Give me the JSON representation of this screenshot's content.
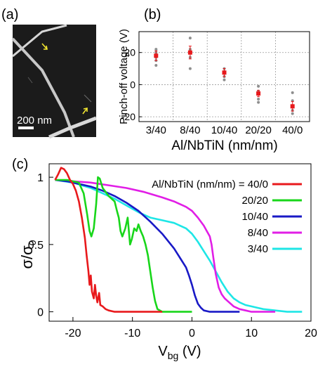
{
  "panel_labels": {
    "a": "(a)",
    "b": "(b)",
    "c": "(c)"
  },
  "micrograph": {
    "scale_bar_label": "200 nm",
    "arrow_color": "#f2e630"
  },
  "colors": {
    "40/0": "#e8191c",
    "20/20": "#18d61a",
    "10/40": "#1919c6",
    "8/40": "#e11ee6",
    "3/40": "#1ee6e6",
    "pinchoff_mean": "#e8191c",
    "pinchoff_sample": "#8e8e8e"
  },
  "chart_data": [
    {
      "type": "scatter",
      "panel": "(b)",
      "ylabel": "Pinch-off voltage (V)",
      "xlabel": "Al/NbTiN (nm/nm)",
      "categories": [
        "3/40",
        "8/40",
        "10/40",
        "20/20",
        "40/0"
      ],
      "ylim": [
        -23,
        33
      ],
      "yticks": [
        20,
        0,
        -20
      ],
      "grid": true,
      "mean": [
        18,
        20,
        7.5,
        -5.5,
        -13.5
      ],
      "mean_error": [
        3,
        4,
        2.5,
        2,
        3
      ],
      "samples": [
        [
          12,
          15,
          17,
          20,
          22
        ],
        [
          10,
          17,
          20,
          22,
          29
        ],
        [
          3,
          5,
          8,
          10
        ],
        [
          -1,
          -4,
          -6,
          -9,
          -11
        ],
        [
          -5,
          -10,
          -13,
          -16,
          -18
        ]
      ]
    },
    {
      "type": "line",
      "panel": "(c)",
      "xlabel": "V",
      "xlabel_sub": "bg",
      "xlabel_unit": " (V)",
      "ylabel": "σ/σ",
      "ylabel_sub": "0",
      "xlim": [
        -24,
        20
      ],
      "ylim": [
        -0.07,
        1.1
      ],
      "xticks": [
        -20,
        -10,
        0,
        10,
        20
      ],
      "yticks": [
        0,
        0.5,
        1
      ],
      "legend_title": "Al/NbTiN (nm/nm) = 40/0",
      "legend_position": "top-right",
      "series": [
        {
          "name": "40/0",
          "points": [
            [
              -23,
              0.98
            ],
            [
              -22.5,
              1.02
            ],
            [
              -22,
              1.07
            ],
            [
              -21.5,
              1.06
            ],
            [
              -21,
              1.03
            ],
            [
              -20.5,
              0.98
            ],
            [
              -20,
              0.95
            ],
            [
              -19.5,
              0.9
            ],
            [
              -19,
              0.82
            ],
            [
              -18.5,
              0.7
            ],
            [
              -18,
              0.55
            ],
            [
              -17.7,
              0.42
            ],
            [
              -17.4,
              0.3
            ],
            [
              -17.2,
              0.2
            ],
            [
              -17.0,
              0.27
            ],
            [
              -16.8,
              0.15
            ],
            [
              -16.5,
              0.1
            ],
            [
              -16.3,
              0.2
            ],
            [
              -16.1,
              0.12
            ],
            [
              -15.9,
              0.07
            ],
            [
              -15.6,
              0.14
            ],
            [
              -15.4,
              0.05
            ],
            [
              -15,
              0.04
            ],
            [
              -14.5,
              0.02
            ],
            [
              -14,
              0.01
            ],
            [
              -13,
              0
            ],
            [
              -10,
              0
            ],
            [
              -5,
              0
            ]
          ]
        },
        {
          "name": "20/20",
          "points": [
            [
              -23,
              0.98
            ],
            [
              -21,
              0.98
            ],
            [
              -19,
              0.96
            ],
            [
              -18.2,
              0.88
            ],
            [
              -17.6,
              0.72
            ],
            [
              -17.2,
              0.6
            ],
            [
              -16.9,
              0.56
            ],
            [
              -16.5,
              0.62
            ],
            [
              -16.1,
              0.8
            ],
            [
              -15.8,
              1.0
            ],
            [
              -15.5,
              0.99
            ],
            [
              -15,
              0.92
            ],
            [
              -14,
              0.86
            ],
            [
              -13,
              0.82
            ],
            [
              -12.6,
              0.75
            ],
            [
              -12.3,
              0.7
            ],
            [
              -12.0,
              0.6
            ],
            [
              -11.7,
              0.56
            ],
            [
              -11.2,
              0.62
            ],
            [
              -10.8,
              0.7
            ],
            [
              -10.4,
              0.5
            ],
            [
              -10.1,
              0.54
            ],
            [
              -9.7,
              0.62
            ],
            [
              -9.3,
              0.6
            ],
            [
              -9.0,
              0.65
            ],
            [
              -8.6,
              0.6
            ],
            [
              -8.2,
              0.56
            ],
            [
              -7.8,
              0.5
            ],
            [
              -7.4,
              0.42
            ],
            [
              -7,
              0.3
            ],
            [
              -6.6,
              0.18
            ],
            [
              -6.2,
              0.08
            ],
            [
              -5.8,
              0.02
            ],
            [
              -5,
              0
            ],
            [
              -2,
              0
            ],
            [
              0,
              0
            ]
          ]
        },
        {
          "name": "10/40",
          "points": [
            [
              -23,
              0.98
            ],
            [
              -21,
              0.97
            ],
            [
              -19,
              0.95
            ],
            [
              -17,
              0.93
            ],
            [
              -15,
              0.9
            ],
            [
              -13,
              0.86
            ],
            [
              -11,
              0.81
            ],
            [
              -9,
              0.75
            ],
            [
              -7,
              0.67
            ],
            [
              -5,
              0.58
            ],
            [
              -3,
              0.47
            ],
            [
              -2,
              0.4
            ],
            [
              -1,
              0.33
            ],
            [
              -0.5,
              0.27
            ],
            [
              0,
              0.2
            ],
            [
              0.5,
              0.12
            ],
            [
              1,
              0.06
            ],
            [
              1.5,
              0.03
            ],
            [
              2,
              0.01
            ],
            [
              3,
              0
            ],
            [
              5,
              0
            ],
            [
              8,
              0
            ]
          ]
        },
        {
          "name": "8/40",
          "points": [
            [
              -23,
              0.98
            ],
            [
              -20,
              0.97
            ],
            [
              -17,
              0.96
            ],
            [
              -14,
              0.94
            ],
            [
              -11,
              0.92
            ],
            [
              -8,
              0.89
            ],
            [
              -5,
              0.85
            ],
            [
              -3,
              0.82
            ],
            [
              -1,
              0.78
            ],
            [
              0,
              0.75
            ],
            [
              1,
              0.7
            ],
            [
              2,
              0.64
            ],
            [
              2.5,
              0.6
            ],
            [
              3,
              0.56
            ],
            [
              3.3,
              0.5
            ],
            [
              3.6,
              0.4
            ],
            [
              4.0,
              0.28
            ],
            [
              4.5,
              0.18
            ],
            [
              5,
              0.13
            ],
            [
              5.5,
              0.1
            ],
            [
              6,
              0.08
            ],
            [
              6.5,
              0.06
            ],
            [
              7,
              0.04
            ],
            [
              8,
              0.02
            ],
            [
              9,
              0.01
            ],
            [
              10,
              0
            ],
            [
              14,
              0
            ]
          ]
        },
        {
          "name": "3/40",
          "points": [
            [
              -23,
              0.98
            ],
            [
              -20,
              0.96
            ],
            [
              -17,
              0.92
            ],
            [
              -15,
              0.88
            ],
            [
              -13,
              0.84
            ],
            [
              -11,
              0.79
            ],
            [
              -9,
              0.74
            ],
            [
              -7,
              0.7
            ],
            [
              -6,
              0.69
            ],
            [
              -5,
              0.68
            ],
            [
              -3,
              0.66
            ],
            [
              -1,
              0.62
            ],
            [
              0,
              0.58
            ],
            [
              1,
              0.52
            ],
            [
              2,
              0.45
            ],
            [
              3,
              0.38
            ],
            [
              4,
              0.3
            ],
            [
              5,
              0.22
            ],
            [
              6,
              0.15
            ],
            [
              7,
              0.1
            ],
            [
              8,
              0.07
            ],
            [
              9,
              0.05
            ],
            [
              10,
              0.04
            ],
            [
              11,
              0.03
            ],
            [
              12,
              0.02
            ],
            [
              14,
              0.01
            ],
            [
              16,
              0
            ],
            [
              18.5,
              0
            ]
          ]
        }
      ]
    }
  ]
}
